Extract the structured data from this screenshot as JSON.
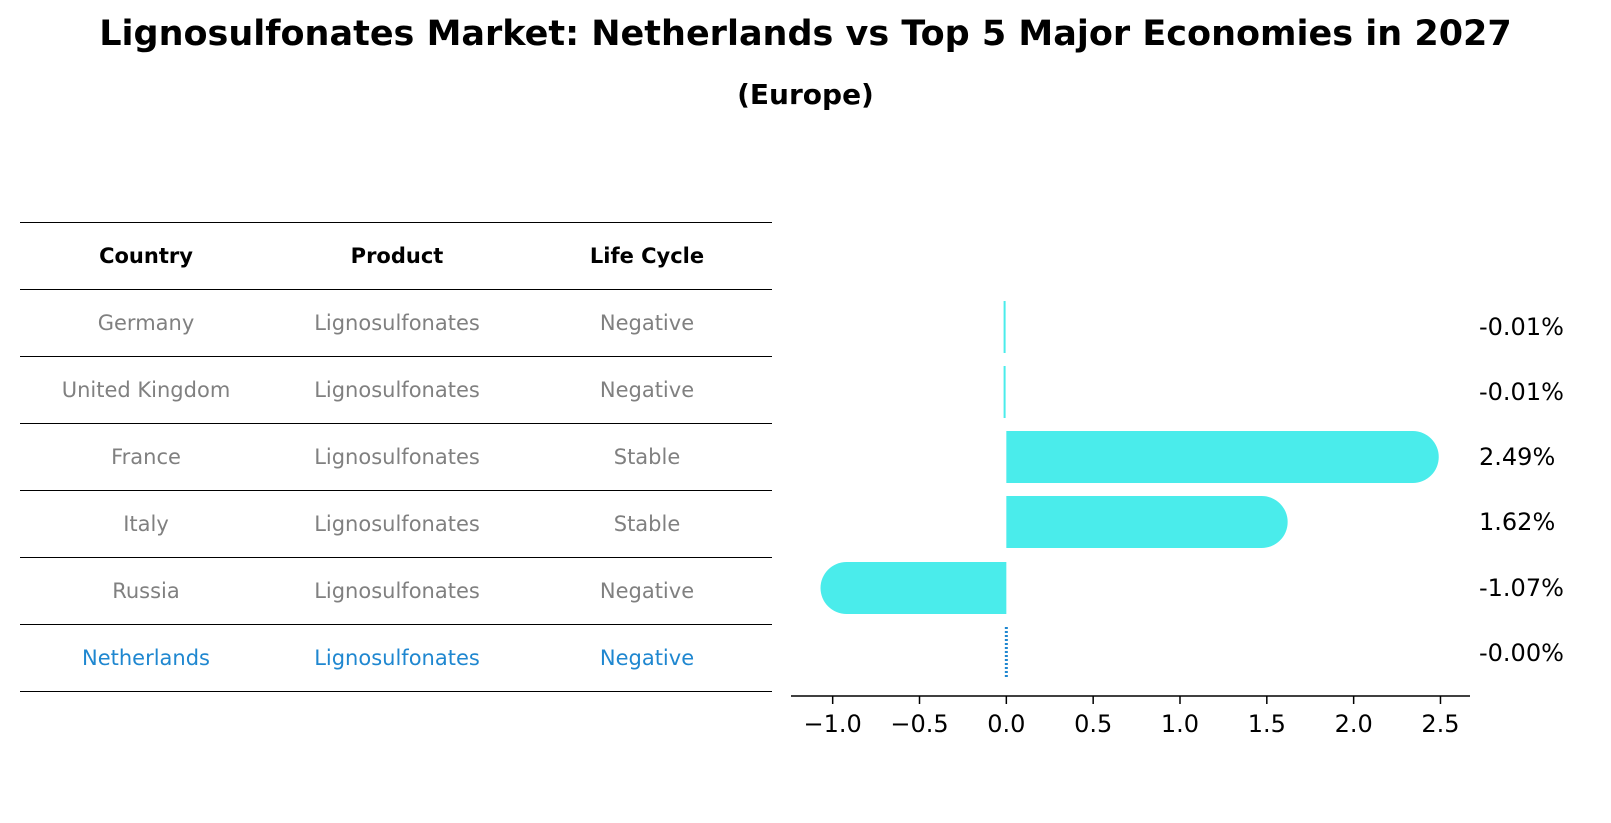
{
  "title": "Lignosulfonates Market: Netherlands vs Top 5 Major Economies in 2027",
  "subtitle": "(Europe)",
  "table": {
    "headers": [
      "Country",
      "Product",
      "Life Cycle"
    ],
    "rows": [
      {
        "country": "Germany",
        "product": "Lignosulfonates",
        "life_cycle": "Negative"
      },
      {
        "country": "United Kingdom",
        "product": "Lignosulfonates",
        "life_cycle": "Negative"
      },
      {
        "country": "France",
        "product": "Lignosulfonates",
        "life_cycle": "Stable"
      },
      {
        "country": "Italy",
        "product": "Lignosulfonates",
        "life_cycle": "Stable"
      },
      {
        "country": "Russia",
        "product": "Lignosulfonates",
        "life_cycle": "Negative"
      },
      {
        "country": "Netherlands",
        "product": "Lignosulfonates",
        "life_cycle": "Negative"
      }
    ]
  },
  "colors": {
    "bar": "#4aeceb",
    "highlight": "#1f87d0",
    "muted": "#808080"
  },
  "chart_data": {
    "type": "bar",
    "orientation": "horizontal",
    "categories": [
      "Germany",
      "United Kingdom",
      "France",
      "Italy",
      "Russia",
      "Netherlands"
    ],
    "values": [
      -0.01,
      -0.01,
      2.49,
      1.62,
      -1.07,
      -0.0
    ],
    "value_labels": [
      "-0.01%",
      "-0.01%",
      "2.49%",
      "1.62%",
      "-1.07%",
      "-0.00%"
    ],
    "xticks": [
      "−1.0",
      "−0.5",
      "0.0",
      "0.5",
      "1.0",
      "1.5",
      "2.0",
      "2.5"
    ],
    "xtick_values": [
      -1.0,
      -0.5,
      0.0,
      0.5,
      1.0,
      1.5,
      2.0,
      2.5
    ],
    "xlim": [
      -1.24,
      2.67
    ],
    "highlight": "Netherlands",
    "xlabel": "",
    "ylabel": ""
  }
}
